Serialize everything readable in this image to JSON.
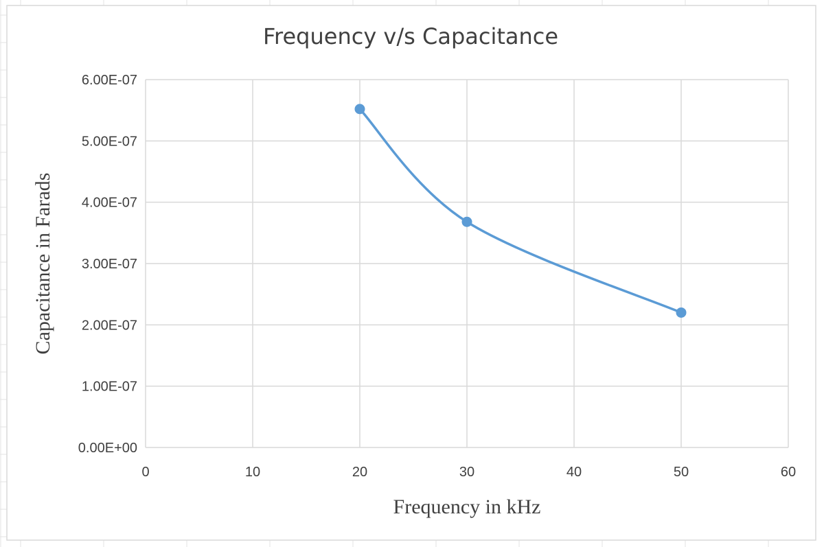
{
  "chart_data": {
    "type": "scatter",
    "title": "Frequency v/s Capacitance",
    "xlabel": "Frequency in kHz",
    "ylabel": "Capacitance in Farads",
    "xlim": [
      0,
      60
    ],
    "ylim": [
      0,
      6e-07
    ],
    "x_ticks": [
      0,
      10,
      20,
      30,
      40,
      50,
      60
    ],
    "x_tick_labels": [
      "0",
      "10",
      "20",
      "30",
      "40",
      "50",
      "60"
    ],
    "y_ticks": [
      0,
      1e-07,
      2e-07,
      3e-07,
      4e-07,
      5e-07,
      6e-07
    ],
    "y_tick_labels": [
      "0.00E+00",
      "1.00E-07",
      "2.00E-07",
      "3.00E-07",
      "4.00E-07",
      "5.00E-07",
      "6.00E-07"
    ],
    "grid": true,
    "smooth_line": true,
    "series": [
      {
        "x": [
          20,
          30,
          50
        ],
        "y": [
          5.52e-07,
          3.68e-07,
          2.2e-07
        ],
        "color": "#5b9bd5"
      }
    ]
  }
}
